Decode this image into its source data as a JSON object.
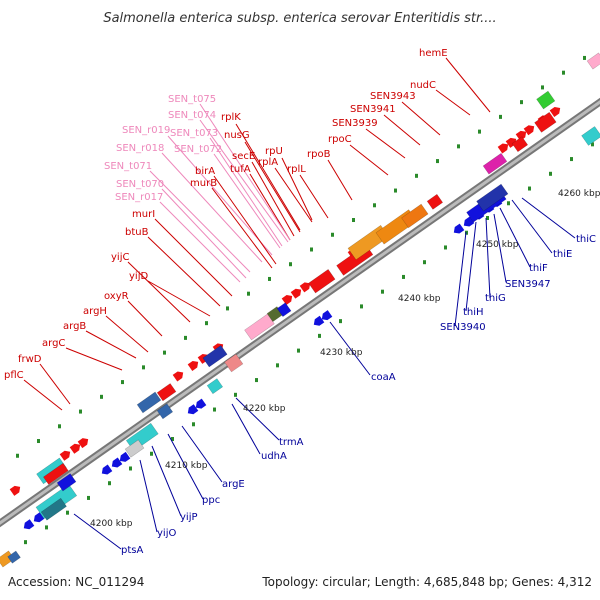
{
  "title": "Salmonella enterica subsp. enterica serovar Enteritidis str....",
  "footer": {
    "accession": "Accession: NC_011294",
    "summary": "Topology: circular; Length: 4,685,848 bp; Genes: 4,312"
  },
  "scale_labels": [
    "4200 kbp",
    "4210 kbp",
    "4220 kbp",
    "4230 kbp",
    "4240 kbp",
    "4250 kbp",
    "4260 kbp"
  ],
  "colors": {
    "forward_gene": "#ee1111",
    "reverse_gene": "#1111dd",
    "rna_gene": "#ffaacc",
    "forward_label": "#cc0000",
    "reverse_label": "#000099",
    "rna_label": "#ee88bb",
    "backbone": "#999999"
  },
  "genes_top": [
    "hemE",
    "nudC",
    "SEN3943",
    "SEN3941",
    "SEN3939",
    "rpoC",
    "rpoB",
    "rplL",
    "rplA",
    "rplK",
    "nusG",
    "secE",
    "tufA",
    "rpU",
    "SEN_t075",
    "SEN_t074",
    "SEN_r019",
    "SEN_t073",
    "SEN_r018",
    "SEN_t072",
    "SEN_t071",
    "SEN_t070",
    "SEN_r017",
    "birA",
    "murB",
    "murI",
    "btuB",
    "yijC",
    "yijD",
    "oxyR",
    "argH",
    "argB",
    "argC",
    "frwD",
    "pflC"
  ],
  "genes_bottom": [
    "thiC",
    "thiE",
    "thiF",
    "SEN3947",
    "thiG",
    "thiH",
    "SEN3940",
    "coaA",
    "trmA",
    "udhA",
    "argE",
    "ppc",
    "yijP",
    "yijO",
    "ptsA"
  ]
}
